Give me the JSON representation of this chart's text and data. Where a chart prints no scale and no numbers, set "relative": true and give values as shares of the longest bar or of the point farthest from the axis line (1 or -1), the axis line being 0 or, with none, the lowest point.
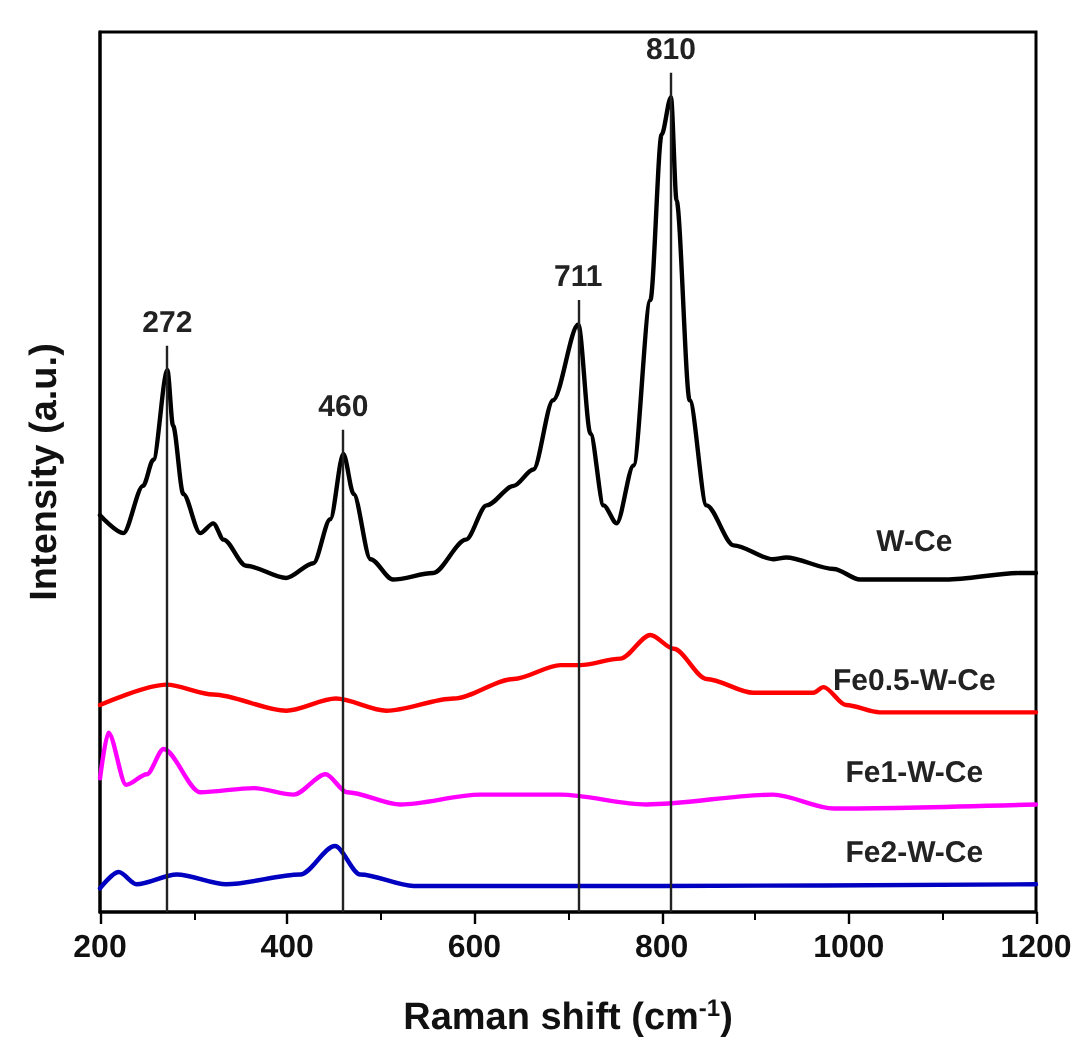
{
  "chart_data": {
    "type": "line",
    "relative": true,
    "xlabel": "Raman shift (cm$^{-1}$)",
    "ylabel": "Intensity (a.u.)",
    "xlim": [
      200,
      1200
    ],
    "xticks": [
      200,
      400,
      600,
      800,
      1000,
      1200
    ],
    "legend": false,
    "grid": false,
    "marker": "none",
    "line_style": "solid",
    "series": [
      {
        "name": "W-Ce",
        "color": "#000000",
        "x": [
          200,
          225,
          246,
          257,
          272,
          278,
          289,
          307,
          321,
          332,
          356,
          399,
          428,
          446,
          460,
          471,
          489,
          513,
          556,
          591,
          613,
          642,
          663,
          684,
          711,
          724,
          738,
          752,
          770,
          788,
          800,
          810,
          816,
          830,
          848,
          877,
          919,
          933,
          984,
          1012,
          1104,
          1183,
          1200
        ],
        "values": [
          0.487,
          0.465,
          0.523,
          0.555,
          0.665,
          0.597,
          0.513,
          0.465,
          0.477,
          0.457,
          0.425,
          0.41,
          0.428,
          0.482,
          0.562,
          0.513,
          0.433,
          0.408,
          0.416,
          0.457,
          0.499,
          0.523,
          0.543,
          0.628,
          0.721,
          0.587,
          0.499,
          0.477,
          0.548,
          0.751,
          0.954,
          1.0,
          0.873,
          0.628,
          0.499,
          0.45,
          0.433,
          0.435,
          0.421,
          0.408,
          0.408,
          0.416,
          0.416
        ]
      },
      {
        "name": "Fe0.5-W-Ce",
        "color": "#ff0000",
        "x": [
          200,
          271,
          321,
          399,
          452,
          506,
          578,
          642,
          692,
          713,
          756,
          788,
          813,
          848,
          898,
          962,
          973,
          997,
          1033,
          1200
        ],
        "values": [
          0.254,
          0.279,
          0.267,
          0.247,
          0.262,
          0.247,
          0.262,
          0.286,
          0.303,
          0.303,
          0.311,
          0.34,
          0.323,
          0.286,
          0.269,
          0.269,
          0.276,
          0.254,
          0.245,
          0.245
        ]
      },
      {
        "name": "Fe1-W-Ce",
        "color": "#ff00ff",
        "x": [
          200,
          209,
          228,
          250,
          268,
          307,
          364,
          407,
          441,
          464,
          521,
          606,
          692,
          784,
          919,
          984,
          1200
        ],
        "values": [
          0.164,
          0.22,
          0.156,
          0.169,
          0.2,
          0.147,
          0.152,
          0.144,
          0.169,
          0.147,
          0.132,
          0.144,
          0.144,
          0.132,
          0.144,
          0.127,
          0.132
        ]
      },
      {
        "name": "Fe2-W-Ce",
        "color": "#0000c0",
        "x": [
          200,
          220,
          239,
          282,
          335,
          414,
          451,
          478,
          535,
          800,
          1200
        ],
        "values": [
          0.029,
          0.049,
          0.034,
          0.046,
          0.034,
          0.046,
          0.081,
          0.046,
          0.032,
          0.032,
          0.034
        ]
      }
    ],
    "ref_lines": [
      {
        "axis": "x",
        "value": 272,
        "label": "272"
      },
      {
        "axis": "x",
        "value": 460,
        "label": "460"
      },
      {
        "axis": "x",
        "value": 711,
        "label": "711"
      },
      {
        "axis": "x",
        "value": 810,
        "label": "810"
      }
    ]
  }
}
